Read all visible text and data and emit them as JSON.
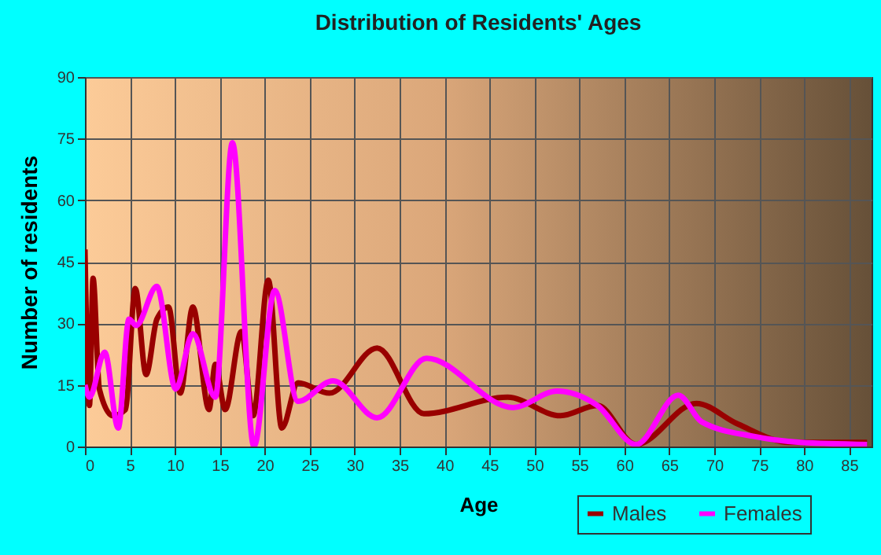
{
  "chart_data": {
    "type": "line",
    "title": "Distribution of Residents' Ages",
    "xlabel": "Age",
    "ylabel": "Number of residents",
    "xlim": [
      0,
      87.5
    ],
    "xticks": [
      0,
      5,
      10,
      15,
      20,
      25,
      30,
      35,
      40,
      45,
      50,
      55,
      60,
      65,
      70,
      75,
      80,
      85
    ],
    "ylim": [
      0,
      90
    ],
    "yticks": [
      0,
      15,
      30,
      45,
      60,
      75,
      90
    ],
    "grid": true,
    "legend": "bottom right",
    "marker": "none",
    "line_style": "solid",
    "series": [
      {
        "name": "Males",
        "color": "#990000",
        "x": [
          0,
          0.5,
          0.9,
          1.6,
          3.1,
          4.5,
          5.6,
          6.8,
          8,
          9.3,
          10.6,
          12,
          13.8,
          14.5,
          15.6,
          17.4,
          18.7,
          20.4,
          21.9,
          23.7,
          27.2,
          32.5,
          37.7,
          47,
          52.9,
          57,
          61.3,
          68,
          72.6,
          78.4,
          87
        ],
        "values": [
          48,
          10,
          41,
          14,
          7.5,
          9,
          38.5,
          17.5,
          31,
          34,
          13,
          34,
          9,
          20,
          9,
          28,
          7.5,
          40.5,
          4.5,
          15.5,
          13,
          24,
          8,
          12,
          7.5,
          10,
          0.5,
          10.5,
          5.5,
          1,
          1
        ]
      },
      {
        "name": "Females",
        "color": "#ff00ff",
        "x": [
          0,
          0.5,
          2.2,
          3.7,
          4.9,
          5.7,
          8,
          10.1,
          12,
          14.5,
          16.4,
          18.8,
          21.1,
          23.7,
          27.6,
          32.5,
          38,
          47.6,
          52.5,
          57,
          61.3,
          66,
          68.6,
          74.3,
          79.6,
          87
        ],
        "values": [
          15,
          12,
          23,
          4.5,
          31,
          29.5,
          39,
          14,
          27.5,
          12,
          74,
          0,
          38,
          11,
          16,
          7,
          21.5,
          9.5,
          13.5,
          10,
          0.5,
          12.5,
          6,
          2.5,
          1,
          0.5
        ]
      }
    ]
  }
}
